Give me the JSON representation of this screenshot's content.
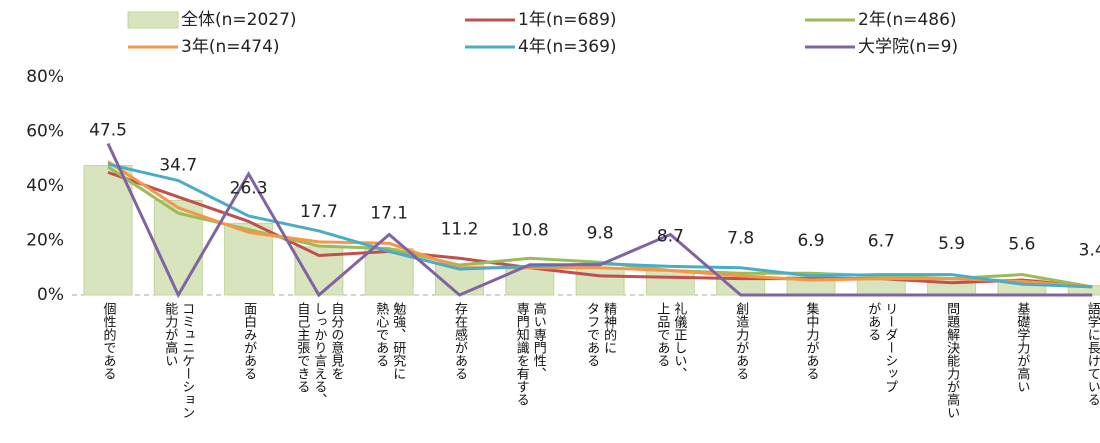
{
  "chart_data": {
    "type": "bar",
    "categories": [
      "個性的である",
      "コミュニケーション\n能力が高い",
      "面白みがある",
      "自分の意見を\nしっかり言える、\n自己主張できる",
      "勉強、研究に\n熱心である",
      "存在感がある",
      "高い専門性、\n専門知識を有する",
      "精神的に\nタフである",
      "礼儀正しい、\n上品である",
      "創造力がある",
      "集中力がある",
      "リーダーシップ\nがある",
      "問題解決能力が高い",
      "基礎学力が高い",
      "語学に長けている"
    ],
    "bar_series": {
      "name": "全体(n=2027)",
      "color": "#d7e4bd",
      "values": [
        47.5,
        34.7,
        26.3,
        17.7,
        17.1,
        11.2,
        10.8,
        9.8,
        8.7,
        7.8,
        6.9,
        6.7,
        5.9,
        5.6,
        3.4
      ]
    },
    "series": [
      {
        "name": "1年(n=689)",
        "color": "#c0504d",
        "values": [
          45,
          36,
          27,
          14.5,
          16,
          13.5,
          10,
          7,
          6.5,
          6,
          6,
          6,
          4.5,
          5.5,
          3
        ]
      },
      {
        "name": "2年(n=486)",
        "color": "#9bbb59",
        "values": [
          47,
          30,
          24,
          18,
          17,
          11,
          13.5,
          12,
          9,
          8,
          8,
          7,
          6,
          7.5,
          3
        ]
      },
      {
        "name": "3年(n=474)",
        "color": "#f79646",
        "values": [
          49,
          32,
          23,
          19.5,
          19,
          10,
          10,
          10,
          9,
          7,
          5.5,
          6,
          6,
          5,
          3
        ]
      },
      {
        "name": "4年(n=369)",
        "color": "#4bacc6",
        "values": [
          48,
          42,
          29,
          23.5,
          16,
          9.5,
          10.5,
          11.5,
          10.5,
          10,
          7,
          7.5,
          7.5,
          4,
          3
        ]
      },
      {
        "name": "大学院(n=9)",
        "color": "#8064a2",
        "values": [
          55.6,
          0,
          44.4,
          0,
          22.2,
          0,
          11.1,
          11.1,
          22.2,
          0,
          0,
          0,
          0,
          0,
          0
        ]
      }
    ],
    "ylim": [
      0,
      80
    ],
    "yticks": [
      {
        "value": 0,
        "label": "0%"
      },
      {
        "value": 20,
        "label": "20%"
      },
      {
        "value": 40,
        "label": "40%"
      },
      {
        "value": 60,
        "label": "60%"
      },
      {
        "value": 80,
        "label": "80%"
      }
    ],
    "grid": false
  }
}
